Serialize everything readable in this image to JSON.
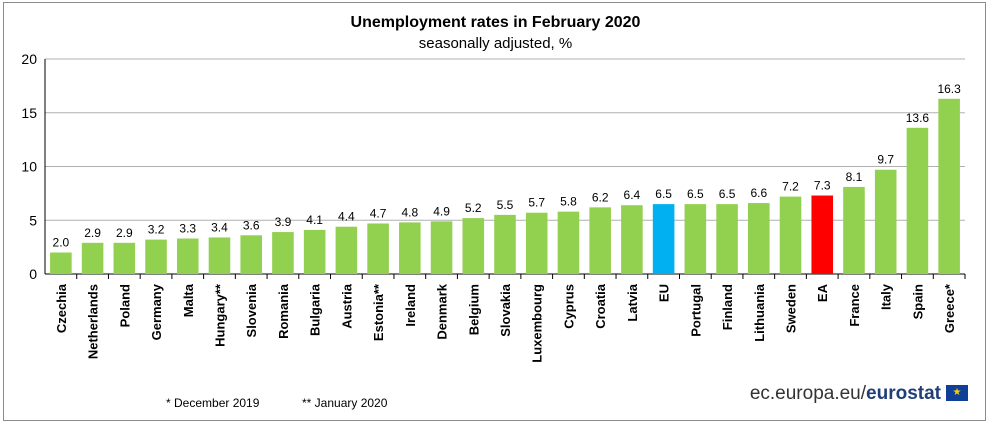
{
  "chart_data": {
    "type": "bar",
    "title": "Unemployment rates in February 2020",
    "subtitle": "seasonally adjusted, %",
    "categories": [
      "Czechia",
      "Netherlands",
      "Poland",
      "Germany",
      "Malta",
      "Hungary**",
      "Slovenia",
      "Romania",
      "Bulgaria",
      "Austria",
      "Estonia**",
      "Ireland",
      "Denmark",
      "Belgium",
      "Slovakia",
      "Luxembourg",
      "Cyprus",
      "Croatia",
      "Latvia",
      "EU",
      "Portugal",
      "Finland",
      "Lithuania",
      "Sweden",
      "EA",
      "France",
      "Italy",
      "Spain",
      "Greece*"
    ],
    "values": [
      2.0,
      2.9,
      2.9,
      3.2,
      3.3,
      3.4,
      3.6,
      3.9,
      4.1,
      4.4,
      4.7,
      4.8,
      4.9,
      5.2,
      5.5,
      5.7,
      5.8,
      6.2,
      6.4,
      6.5,
      6.5,
      6.5,
      6.6,
      7.2,
      7.3,
      8.1,
      9.7,
      13.6,
      16.3
    ],
    "value_labels": [
      "2.0",
      "2.9",
      "2.9",
      "3.2",
      "3.3",
      "3.4",
      "3.6",
      "3.9",
      "4.1",
      "4.4",
      "4.7",
      "4.8",
      "4.9",
      "5.2",
      "5.5",
      "5.7",
      "5.8",
      "6.2",
      "6.4",
      "6.5",
      "6.5",
      "6.5",
      "6.6",
      "7.2",
      "7.3",
      "8.1",
      "9.7",
      "13.6",
      "16.3"
    ],
    "highlight": {
      "EU": "#00b0f0",
      "EA": "#ff0000"
    },
    "bar_color": "#92d050",
    "ylim": [
      0,
      20
    ],
    "yticks": [
      0,
      5,
      10,
      15,
      20
    ],
    "grid": true
  },
  "footnotes": {
    "note1": "*  December 2019",
    "note2": "** January 2020"
  },
  "source": {
    "prefix": "ec.europa.eu/",
    "brand": "eurostat"
  }
}
